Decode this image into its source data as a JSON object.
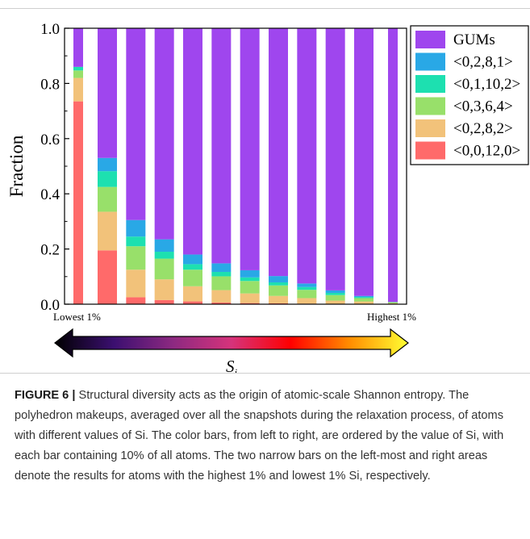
{
  "figure": {
    "caption_label": "FIGURE 6 |",
    "caption_text": "Structural diversity acts as the origin of atomic-scale Shannon entropy. The polyhedron makeups, averaged over all the snapshots during the relaxation process, of atoms with different values of Si. The color bars, from left to right, are ordered by the value of Si, with each bar containing 10% of all atoms. The two narrow bars on the left-most and right areas denote the results for atoms with the highest 1% and lowest 1% Si, respectively."
  },
  "arrow": {
    "left_label": "Lowest 1%",
    "right_label": "Highest 1%",
    "symbol": "S",
    "subscript": "i",
    "gradient_colors": [
      "#000000",
      "#3b0f70",
      "#8c2981",
      "#d6337b",
      "#ff0000",
      "#ff8c00",
      "#ffff33"
    ]
  },
  "chart_data": {
    "type": "bar",
    "stacked": true,
    "title": "",
    "xlabel": "",
    "ylabel": "Fraction",
    "ylim": [
      0,
      1.0
    ],
    "yticks": [
      "0.0",
      "0.2",
      "0.4",
      "0.6",
      "0.8",
      "1.0"
    ],
    "grid": false,
    "legend_position": "top-right",
    "bar_widths": [
      "narrow",
      "wide",
      "wide",
      "wide",
      "wide",
      "wide",
      "wide",
      "wide",
      "wide",
      "wide",
      "wide",
      "narrow"
    ],
    "series": [
      {
        "name": "<0,0,12,0>",
        "color": "#ff6a6a",
        "values": [
          0.735,
          0.195,
          0.025,
          0.015,
          0.01,
          0.006,
          0.004,
          0.003,
          0.002,
          0.0015,
          0.001,
          0.001
        ]
      },
      {
        "name": "<0,2,8,2>",
        "color": "#f2c27a",
        "values": [
          0.085,
          0.14,
          0.1,
          0.075,
          0.055,
          0.045,
          0.035,
          0.027,
          0.02,
          0.0115,
          0.009,
          0.002
        ]
      },
      {
        "name": "<0,3,6,4>",
        "color": "#98e06a",
        "values": [
          0.027,
          0.09,
          0.085,
          0.075,
          0.06,
          0.05,
          0.045,
          0.038,
          0.03,
          0.02,
          0.012,
          0.004
        ]
      },
      {
        "name": "<0,1,10,2>",
        "color": "#1de0b0",
        "values": [
          0.013,
          0.057,
          0.035,
          0.025,
          0.02,
          0.016,
          0.013,
          0.011,
          0.01,
          0.008,
          0.004,
          0.001
        ]
      },
      {
        "name": "<0,2,8,1>",
        "color": "#29a8e6",
        "values": [
          0.0,
          0.048,
          0.06,
          0.045,
          0.035,
          0.031,
          0.026,
          0.023,
          0.013,
          0.009,
          0.004,
          0.0
        ]
      },
      {
        "name": "GUMs",
        "color": "#9f46ee",
        "values": [
          0.14,
          0.47,
          0.695,
          0.765,
          0.82,
          0.852,
          0.877,
          0.898,
          0.925,
          0.95,
          0.97,
          0.992
        ]
      }
    ]
  }
}
